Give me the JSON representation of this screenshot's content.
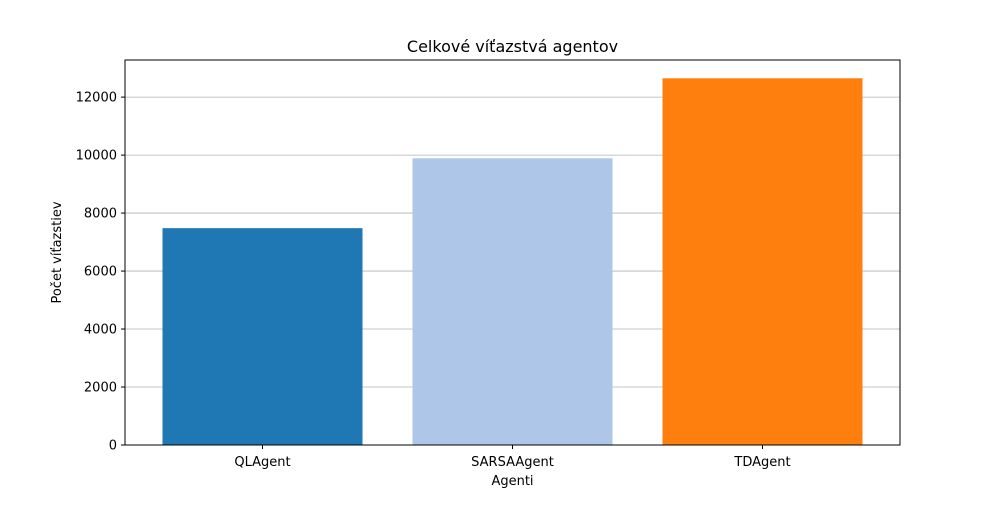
{
  "chart_data": {
    "type": "bar",
    "title": "Celkové víťazstvá agentov",
    "xlabel": "Agenti",
    "ylabel": "Počet víťazstiev",
    "categories": [
      "QLAgent",
      "SARSAAgent",
      "TDAgent"
    ],
    "values": [
      7480,
      9890,
      12650
    ],
    "colors": [
      "#1f77b4",
      "#aec7e8",
      "#ff7f0e"
    ],
    "ylim": [
      0,
      13280
    ],
    "yticks": [
      0,
      2000,
      4000,
      6000,
      8000,
      10000,
      12000
    ],
    "grid": "y-major"
  }
}
